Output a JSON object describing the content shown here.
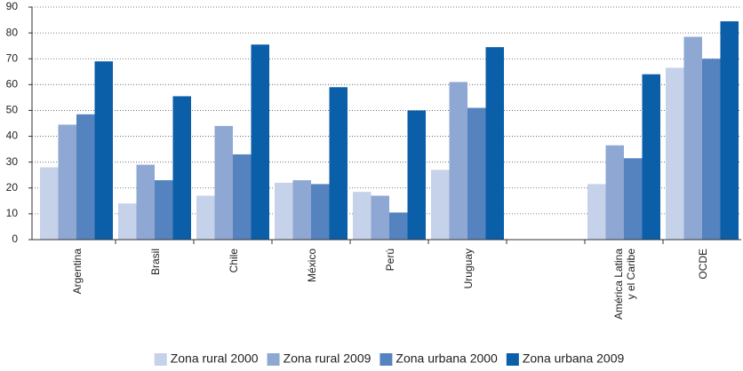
{
  "chart_data": {
    "type": "bar",
    "categories": [
      "Argentina",
      "Brasil",
      "Chile",
      "México",
      "Perú",
      "Uruguay",
      null,
      "América Latina\ny el Caribe",
      "OCDE"
    ],
    "series": [
      {
        "name": "Zona rural 2000",
        "color": "#c5d2ea",
        "values": [
          28,
          14,
          17,
          22,
          18.5,
          27,
          null,
          21.5,
          66.5
        ]
      },
      {
        "name": "Zona rural 2009",
        "color": "#8ea7d3",
        "values": [
          44.5,
          29,
          44,
          23,
          17,
          61,
          null,
          36.5,
          78.5
        ]
      },
      {
        "name": "Zona urbana 2000",
        "color": "#5483bf",
        "values": [
          48.5,
          23,
          33,
          21.5,
          10.5,
          51,
          null,
          31.5,
          70
        ]
      },
      {
        "name": "Zona urbana 2009",
        "color": "#0b5ea8",
        "values": [
          69,
          55.5,
          75.5,
          59,
          50,
          74.5,
          null,
          64,
          84.5
        ]
      }
    ],
    "ylim": [
      0,
      90
    ],
    "yticks": [
      0,
      10,
      20,
      30,
      40,
      50,
      60,
      70,
      80,
      90
    ],
    "grid": true
  }
}
